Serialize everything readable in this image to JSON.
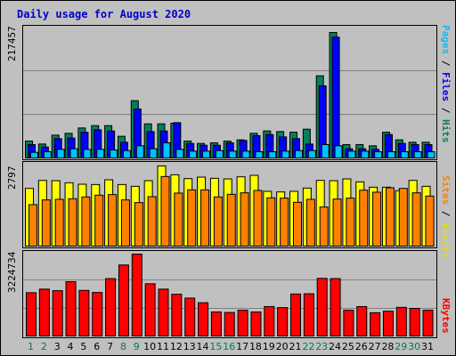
{
  "title": "Daily usage for August 2020",
  "axis_labels": {
    "top_max": "217457",
    "mid_max": "2797",
    "bot_max": "3224734"
  },
  "right_labels": {
    "pages": "Pages",
    "files": "Files",
    "hits": "Hits",
    "sites": "Sites",
    "visits": "Visits",
    "kbytes": "KBytes",
    "sep": " / "
  },
  "colors": {
    "hits": "#00805c",
    "files": "#0000ff",
    "pages": "#00c0ff",
    "visits": "#ffff00",
    "sites": "#ff8000",
    "kbytes": "#ff0000",
    "weekend": "#008040",
    "weekday": "#000000"
  },
  "chart_data": [
    {
      "type": "bar",
      "title": "Daily usage for August 2020",
      "ylabel_max": 217457,
      "categories": [
        "1",
        "2",
        "3",
        "4",
        "5",
        "6",
        "7",
        "8",
        "9",
        "10",
        "11",
        "12",
        "13",
        "14",
        "15",
        "16",
        "17",
        "18",
        "19",
        "20",
        "21",
        "22",
        "23",
        "24",
        "25",
        "26",
        "27",
        "28",
        "29",
        "30",
        "31"
      ],
      "weekend_days": [
        "1",
        "2",
        "8",
        "9",
        "15",
        "16",
        "22",
        "23",
        "29",
        "30"
      ],
      "series": [
        {
          "name": "Hits",
          "values": [
            30000,
            25000,
            40000,
            43000,
            52000,
            56000,
            56000,
            38000,
            98000,
            59000,
            59000,
            60000,
            30000,
            26000,
            27000,
            30000,
            32000,
            43000,
            47000,
            46000,
            45000,
            50000,
            140000,
            213000,
            24000,
            24000,
            22000,
            45000,
            32000,
            28000,
            28000
          ]
        },
        {
          "name": "Files",
          "values": [
            24000,
            20000,
            34000,
            35000,
            45000,
            49000,
            47000,
            28000,
            84000,
            46000,
            47000,
            61000,
            26000,
            23000,
            23000,
            27000,
            31000,
            39000,
            41000,
            37000,
            34000,
            25000,
            123000,
            205000,
            17000,
            17000,
            16000,
            41000,
            26000,
            24000,
            24000
          ]
        },
        {
          "name": "Pages",
          "values": [
            11000,
            12000,
            16000,
            17000,
            16000,
            16000,
            15000,
            14000,
            22000,
            17000,
            27000,
            16000,
            13000,
            13000,
            14000,
            13000,
            13000,
            12000,
            12000,
            13000,
            14000,
            14000,
            24000,
            22000,
            13000,
            13000,
            12000,
            12000,
            12000,
            12000,
            12000
          ]
        }
      ]
    },
    {
      "type": "bar",
      "ylabel_max": 2797,
      "categories": [
        "1",
        "2",
        "3",
        "4",
        "5",
        "6",
        "7",
        "8",
        "9",
        "10",
        "11",
        "12",
        "13",
        "14",
        "15",
        "16",
        "17",
        "18",
        "19",
        "20",
        "21",
        "22",
        "23",
        "24",
        "25",
        "26",
        "27",
        "28",
        "29",
        "30",
        "31"
      ],
      "series": [
        {
          "name": "Visits",
          "values": [
            1980,
            2250,
            2240,
            2170,
            2120,
            2110,
            2270,
            2110,
            2050,
            2240,
            2740,
            2440,
            2310,
            2360,
            2320,
            2300,
            2370,
            2420,
            1880,
            1860,
            1880,
            1990,
            2250,
            2240,
            2300,
            2200,
            2020,
            2020,
            1900,
            2250,
            2050
          ]
        },
        {
          "name": "Sites",
          "values": [
            1430,
            1590,
            1610,
            1630,
            1690,
            1750,
            1770,
            1590,
            1500,
            1700,
            2380,
            1820,
            1930,
            1930,
            1690,
            1780,
            1830,
            1910,
            1660,
            1650,
            1510,
            1610,
            1350,
            1620,
            1650,
            1920,
            1850,
            2000,
            1980,
            1830,
            1720
          ]
        }
      ]
    },
    {
      "type": "bar",
      "ylabel_max": 3224734,
      "categories": [
        "1",
        "2",
        "3",
        "4",
        "5",
        "6",
        "7",
        "8",
        "9",
        "10",
        "11",
        "12",
        "13",
        "14",
        "15",
        "16",
        "17",
        "18",
        "19",
        "20",
        "21",
        "22",
        "23",
        "24",
        "25",
        "26",
        "27",
        "28",
        "29",
        "30",
        "31"
      ],
      "series": [
        {
          "name": "KBytes",
          "values": [
            1720000,
            1860000,
            1800000,
            2150000,
            1810000,
            1730000,
            2270000,
            2800000,
            3224734,
            2070000,
            1860000,
            1660000,
            1510000,
            1330000,
            970000,
            950000,
            1040000,
            970000,
            1180000,
            1140000,
            1670000,
            1680000,
            2280000,
            2270000,
            1040000,
            1180000,
            940000,
            1000000,
            1150000,
            1110000,
            1040000
          ]
        }
      ]
    }
  ]
}
